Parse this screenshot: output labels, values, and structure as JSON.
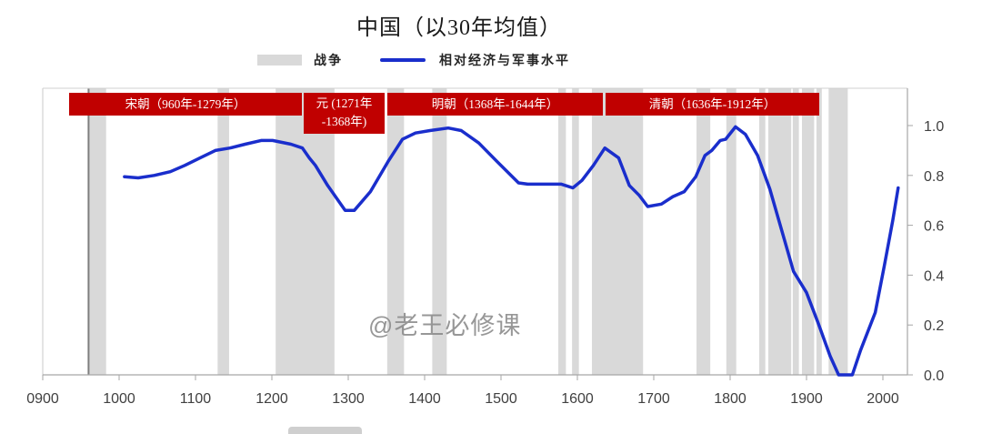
{
  "title": "中国（以30年均值）",
  "legend": {
    "war_label": "战争",
    "line_label": "相对经济与军事水平"
  },
  "dynasty_banners": {
    "song": "宋朝（960年-1279年）",
    "yuan_line1": "元 (1271年",
    "yuan_line2": "-1368年)",
    "ming": "明朝（1368年-1644年）",
    "qing": "清朝（1636年-1912年）"
  },
  "watermark": "@老王必修课",
  "colors": {
    "line": "#1a2ecc",
    "war_shading": "#d9d9d9",
    "banner": "#c00000",
    "marker_line": "#7f7f7f",
    "axis": "#a6a6a6",
    "tick_label": "#404040"
  },
  "chart_data": {
    "type": "line",
    "title": "中国（以30年均值）",
    "xlabel": "",
    "ylabel": "",
    "xlim": [
      900,
      2032
    ],
    "ylim": [
      0.0,
      1.1
    ],
    "grid": false,
    "legend_position": "top",
    "legend": [
      "战争",
      "相对经济与军事水平"
    ],
    "x_ticks": [
      900,
      1000,
      1100,
      1200,
      1300,
      1400,
      1500,
      1600,
      1700,
      1800,
      1900,
      2000
    ],
    "x_tick_labels": [
      "0900",
      "1000",
      "1100",
      "1200",
      "1300",
      "1400",
      "1500",
      "1600",
      "1700",
      "1800",
      "1900",
      "2000"
    ],
    "y_ticks": [
      0.0,
      0.2,
      0.4,
      0.6,
      0.8,
      1.0
    ],
    "y_tick_labels": [
      "0.0",
      "0.2",
      "0.4",
      "0.6",
      "0.8",
      "1.0"
    ],
    "y_axis_side": "right",
    "x": [
      1007,
      1025,
      1046,
      1067,
      1086,
      1106,
      1126,
      1145,
      1165,
      1186,
      1201,
      1225,
      1240,
      1249,
      1257,
      1273,
      1296,
      1308,
      1329,
      1352,
      1371,
      1388,
      1407,
      1431,
      1448,
      1471,
      1495,
      1523,
      1535,
      1560,
      1579,
      1594,
      1606,
      1621,
      1636,
      1654,
      1668,
      1681,
      1692,
      1710,
      1725,
      1740,
      1755,
      1767,
      1776,
      1787,
      1794,
      1807,
      1820,
      1836,
      1852,
      1868,
      1883,
      1900,
      1915,
      1931,
      1942,
      1960,
      1971,
      1990,
      2002,
      2013,
      2020
    ],
    "series": [
      {
        "name": "相对经济与军事水平",
        "values": [
          0.795,
          0.79,
          0.8,
          0.815,
          0.84,
          0.87,
          0.9,
          0.91,
          0.925,
          0.94,
          0.94,
          0.925,
          0.91,
          0.87,
          0.84,
          0.76,
          0.66,
          0.66,
          0.735,
          0.855,
          0.945,
          0.97,
          0.98,
          0.99,
          0.98,
          0.93,
          0.855,
          0.77,
          0.765,
          0.765,
          0.765,
          0.75,
          0.78,
          0.84,
          0.91,
          0.87,
          0.76,
          0.72,
          0.675,
          0.685,
          0.715,
          0.735,
          0.795,
          0.88,
          0.9,
          0.94,
          0.945,
          0.995,
          0.965,
          0.88,
          0.745,
          0.575,
          0.415,
          0.33,
          0.21,
          0.075,
          0.0,
          0.0,
          0.1,
          0.25,
          0.44,
          0.62,
          0.75
        ]
      }
    ],
    "war_periods": [
      [
        960,
        983
      ],
      [
        1129,
        1144
      ],
      [
        1205,
        1282
      ],
      [
        1351,
        1373
      ],
      [
        1410,
        1429
      ],
      [
        1575,
        1585
      ],
      [
        1593,
        1602
      ],
      [
        1619,
        1686
      ],
      [
        1756,
        1774
      ],
      [
        1795,
        1808
      ],
      [
        1838,
        1846
      ],
      [
        1850,
        1880
      ],
      [
        1882,
        1890
      ],
      [
        1894,
        1910
      ],
      [
        1913,
        1920
      ],
      [
        1929,
        1954
      ]
    ],
    "marker_lines": [
      960
    ],
    "annotations": [
      {
        "label": "宋朝（960年-1279年）",
        "start": 960,
        "end": 1279
      },
      {
        "label": "元 (1271年-1368年)",
        "start": 1271,
        "end": 1368
      },
      {
        "label": "明朝（1368年-1644年）",
        "start": 1368,
        "end": 1644
      },
      {
        "label": "清朝（1636年-1912年）",
        "start": 1636,
        "end": 1912
      }
    ]
  }
}
